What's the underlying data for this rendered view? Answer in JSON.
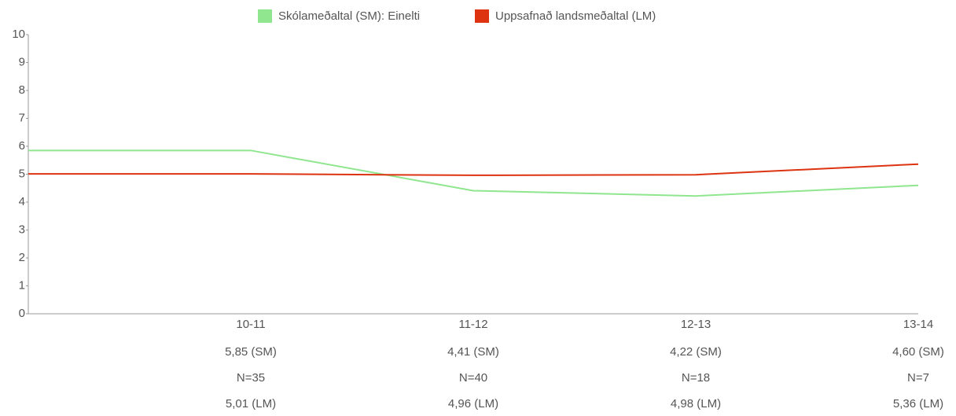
{
  "chart_data": {
    "type": "line",
    "categories": [
      null,
      "10-11",
      "11-12",
      "12-13",
      "13-14"
    ],
    "series": [
      {
        "name": "Skólameðaltal (SM): Einelti",
        "color": "#8fe68f",
        "values": [
          5.85,
          5.85,
          4.41,
          4.22,
          4.6
        ],
        "value_labels": [
          null,
          "5,85 (SM)",
          "4,41 (SM)",
          "4,22 (SM)",
          "4,60 (SM)"
        ]
      },
      {
        "name": "Uppsafnað landsmeðaltal (LM)",
        "color": "#dd3311",
        "values": [
          5.01,
          5.01,
          4.96,
          4.98,
          5.36
        ],
        "value_labels": [
          null,
          "5,01 (LM)",
          "4,96 (LM)",
          "4,98 (LM)",
          "5,36 (LM)"
        ]
      }
    ],
    "n_labels": [
      null,
      "N=35",
      "N=40",
      "N=18",
      "N=7"
    ],
    "ylim": [
      0,
      10
    ],
    "yticks": [
      0,
      1,
      2,
      3,
      4,
      5,
      6,
      7,
      8,
      9,
      10
    ],
    "legend": "top"
  }
}
